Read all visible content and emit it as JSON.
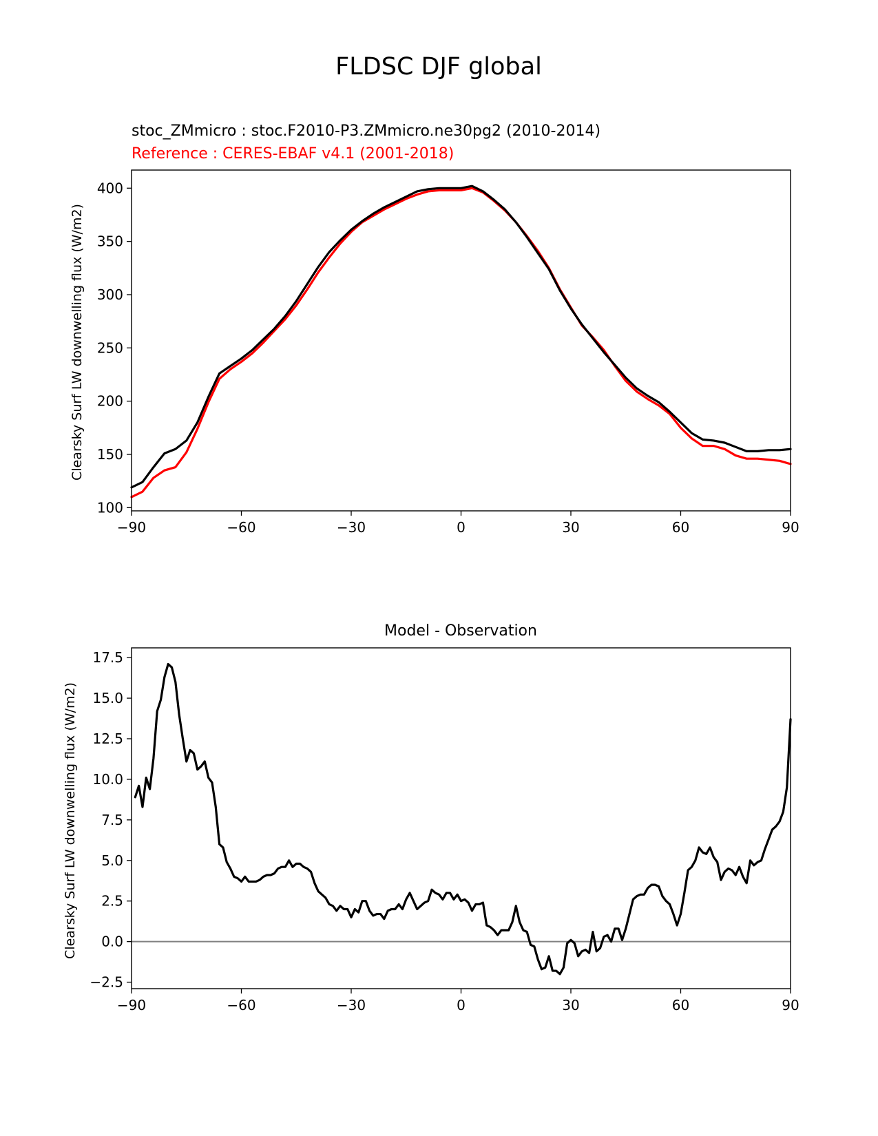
{
  "figure_title": "FLDSC DJF global",
  "chart_data": [
    {
      "type": "line",
      "title_lines": [
        {
          "text": "stoc_ZMmicro : stoc.F2010-P3.ZMmicro.ne30pg2 (2010-2014)",
          "color": "#000000"
        },
        {
          "text": "Reference : CERES-EBAF v4.1 (2001-2018)",
          "color": "#ff0000"
        }
      ],
      "xlabel": "",
      "ylabel": "Clearsky Surf LW downwelling flux (W/m2)",
      "xlim": [
        -90,
        90
      ],
      "ylim": [
        97,
        417
      ],
      "xticks": [
        -90,
        -60,
        -30,
        0,
        30,
        60,
        90
      ],
      "xtick_labels": [
        "−90",
        "−60",
        "−30",
        "0",
        "30",
        "60",
        "90"
      ],
      "yticks": [
        100,
        150,
        200,
        250,
        300,
        350,
        400
      ],
      "ytick_labels": [
        "100",
        "150",
        "200",
        "250",
        "300",
        "350",
        "400"
      ],
      "x": [
        -90,
        -87,
        -84,
        -81,
        -78,
        -75,
        -72,
        -69,
        -66,
        -63,
        -60,
        -57,
        -54,
        -51,
        -48,
        -45,
        -42,
        -39,
        -36,
        -33,
        -30,
        -27,
        -24,
        -21,
        -18,
        -15,
        -12,
        -9,
        -6,
        -3,
        0,
        3,
        6,
        9,
        12,
        15,
        18,
        21,
        24,
        27,
        30,
        33,
        36,
        39,
        42,
        45,
        48,
        51,
        54,
        57,
        60,
        63,
        66,
        69,
        72,
        75,
        78,
        81,
        84,
        87,
        90
      ],
      "series": [
        {
          "color": "#000000",
          "values": [
            119,
            124,
            138,
            151,
            155,
            163,
            180,
            204,
            226,
            233,
            240,
            248,
            258,
            268,
            280,
            294,
            310,
            326,
            340,
            351,
            361,
            369,
            376,
            382,
            387,
            392,
            397,
            399,
            400,
            400,
            400,
            402,
            397,
            389,
            380,
            368,
            354,
            339,
            324,
            304,
            287,
            272,
            259,
            246,
            234,
            222,
            212,
            205,
            199,
            190,
            180,
            170,
            164,
            163,
            161,
            157,
            153,
            153,
            154,
            154,
            155
          ]
        },
        {
          "color": "#ff0000",
          "values": [
            110,
            115,
            128,
            135,
            138,
            152,
            174,
            199,
            221,
            230,
            237,
            245,
            255,
            266,
            277,
            290,
            305,
            321,
            335,
            348,
            359,
            368,
            374,
            380,
            385,
            390,
            394,
            397,
            398,
            398,
            398,
            400,
            396,
            388,
            379,
            368,
            355,
            341,
            325,
            305,
            288,
            271,
            260,
            248,
            233,
            219,
            209,
            202,
            196,
            188,
            175,
            165,
            158,
            158,
            155,
            149,
            146,
            146,
            145,
            144,
            141
          ]
        }
      ]
    },
    {
      "type": "line",
      "title": "Model - Observation",
      "xlabel": "",
      "ylabel": "Clearsky Surf LW downwelling flux (W/m2)",
      "xlim": [
        -90,
        90
      ],
      "ylim": [
        -2.9,
        18.1
      ],
      "xticks": [
        -90,
        -60,
        -30,
        0,
        30,
        60,
        90
      ],
      "xtick_labels": [
        "−90",
        "−60",
        "−30",
        "0",
        "30",
        "60",
        "90"
      ],
      "yticks": [
        -2.5,
        0.0,
        2.5,
        5.0,
        7.5,
        10.0,
        12.5,
        15.0,
        17.5
      ],
      "ytick_labels": [
        "−2.5",
        "0.0",
        "2.5",
        "5.0",
        "7.5",
        "10.0",
        "12.5",
        "15.0",
        "17.5"
      ],
      "zero_line": {
        "y": 0,
        "color": "#808080"
      },
      "x": [
        -89,
        -88,
        -87,
        -86,
        -85,
        -84,
        -83,
        -82,
        -81,
        -80,
        -79,
        -78,
        -77,
        -76,
        -75,
        -74,
        -73,
        -72,
        -71,
        -70,
        -69,
        -68,
        -67,
        -66,
        -65,
        -64,
        -63,
        -62,
        -61,
        -60,
        -59,
        -58,
        -57,
        -56,
        -55,
        -54,
        -53,
        -52,
        -51,
        -50,
        -49,
        -48,
        -47,
        -46,
        -45,
        -44,
        -43,
        -42,
        -41,
        -40,
        -39,
        -38,
        -37,
        -36,
        -35,
        -34,
        -33,
        -32,
        -31,
        -30,
        -29,
        -28,
        -27,
        -26,
        -25,
        -24,
        -23,
        -22,
        -21,
        -20,
        -19,
        -18,
        -17,
        -16,
        -15,
        -14,
        -13,
        -12,
        -11,
        -10,
        -9,
        -8,
        -7,
        -6,
        -5,
        -4,
        -3,
        -2,
        -1,
        0,
        1,
        2,
        3,
        4,
        5,
        6,
        7,
        8,
        9,
        10,
        11,
        12,
        13,
        14,
        15,
        16,
        17,
        18,
        19,
        20,
        21,
        22,
        23,
        24,
        25,
        26,
        27,
        28,
        29,
        30,
        31,
        32,
        33,
        34,
        35,
        36,
        37,
        38,
        39,
        40,
        41,
        42,
        43,
        44,
        45,
        46,
        47,
        48,
        49,
        50,
        51,
        52,
        53,
        54,
        55,
        56,
        57,
        58,
        59,
        60,
        61,
        62,
        63,
        64,
        65,
        66,
        67,
        68,
        69,
        70,
        71,
        72,
        73,
        74,
        75,
        76,
        77,
        78,
        79,
        80,
        81,
        82,
        83,
        84,
        85,
        86,
        87,
        88,
        89,
        90
      ],
      "series": [
        {
          "color": "#000000",
          "values": [
            8.9,
            9.6,
            8.3,
            10.1,
            9.4,
            11.3,
            14.2,
            14.9,
            16.3,
            17.1,
            16.9,
            16.0,
            14.0,
            12.5,
            11.1,
            11.8,
            11.6,
            10.6,
            10.8,
            11.1,
            10.1,
            9.8,
            8.3,
            6.0,
            5.8,
            4.9,
            4.5,
            4.0,
            3.9,
            3.7,
            4.0,
            3.7,
            3.7,
            3.7,
            3.8,
            4.0,
            4.1,
            4.1,
            4.2,
            4.5,
            4.6,
            4.6,
            5.0,
            4.6,
            4.8,
            4.8,
            4.6,
            4.5,
            4.3,
            3.6,
            3.1,
            2.9,
            2.7,
            2.3,
            2.2,
            1.9,
            2.2,
            2.0,
            2.0,
            1.5,
            2.0,
            1.8,
            2.5,
            2.5,
            1.9,
            1.6,
            1.7,
            1.7,
            1.4,
            1.9,
            2.0,
            2.0,
            2.3,
            2.0,
            2.6,
            3.0,
            2.5,
            2.0,
            2.2,
            2.4,
            2.5,
            3.2,
            3.0,
            2.9,
            2.6,
            3.0,
            3.0,
            2.6,
            2.9,
            2.5,
            2.6,
            2.4,
            1.9,
            2.3,
            2.3,
            2.4,
            1.0,
            0.9,
            0.7,
            0.4,
            0.7,
            0.7,
            0.7,
            1.2,
            2.2,
            1.2,
            0.7,
            0.6,
            -0.2,
            -0.3,
            -1.1,
            -1.7,
            -1.6,
            -0.9,
            -1.8,
            -1.8,
            -2.0,
            -1.6,
            -0.1,
            0.1,
            -0.1,
            -0.9,
            -0.6,
            -0.5,
            -0.7,
            0.6,
            -0.6,
            -0.4,
            0.3,
            0.4,
            0.0,
            0.8,
            0.8,
            0.1,
            0.8,
            1.7,
            2.6,
            2.8,
            2.9,
            2.9,
            3.3,
            3.5,
            3.5,
            3.4,
            2.8,
            2.5,
            2.3,
            1.7,
            1.0,
            1.7,
            3.0,
            4.4,
            4.6,
            5.0,
            5.8,
            5.5,
            5.4,
            5.8,
            5.2,
            4.9,
            3.8,
            4.3,
            4.5,
            4.4,
            4.1,
            4.6,
            4.0,
            3.6,
            5.0,
            4.7,
            4.9,
            5.0,
            5.7,
            6.3,
            6.9,
            7.1,
            7.4,
            8.0,
            9.5,
            13.7
          ]
        }
      ]
    }
  ]
}
